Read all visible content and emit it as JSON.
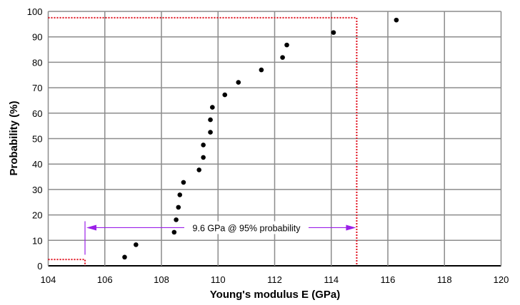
{
  "chart_data": {
    "type": "scatter",
    "title": "",
    "xlabel": "Young's modulus E (GPa)",
    "ylabel": "Probability (%)",
    "xlim": [
      104,
      120
    ],
    "ylim": [
      0,
      100
    ],
    "xticks": [
      104,
      106,
      108,
      110,
      112,
      114,
      116,
      118,
      120
    ],
    "yticks": [
      0,
      10,
      20,
      30,
      40,
      50,
      60,
      70,
      80,
      90,
      100
    ],
    "grid": true,
    "legend": "none",
    "points": [
      {
        "x": 106.7,
        "y": 3.4
      },
      {
        "x": 107.1,
        "y": 8.3
      },
      {
        "x": 108.45,
        "y": 13.2
      },
      {
        "x": 108.52,
        "y": 18.1
      },
      {
        "x": 108.6,
        "y": 23.0
      },
      {
        "x": 108.65,
        "y": 27.9
      },
      {
        "x": 108.78,
        "y": 32.8
      },
      {
        "x": 109.33,
        "y": 37.7
      },
      {
        "x": 109.48,
        "y": 42.6
      },
      {
        "x": 109.48,
        "y": 47.5
      },
      {
        "x": 109.73,
        "y": 52.5
      },
      {
        "x": 109.73,
        "y": 57.4
      },
      {
        "x": 109.8,
        "y": 62.3
      },
      {
        "x": 110.24,
        "y": 67.2
      },
      {
        "x": 110.72,
        "y": 72.1
      },
      {
        "x": 111.53,
        "y": 77.0
      },
      {
        "x": 112.28,
        "y": 81.9
      },
      {
        "x": 112.43,
        "y": 86.8
      },
      {
        "x": 114.08,
        "y": 91.7
      },
      {
        "x": 116.3,
        "y": 96.6
      }
    ],
    "bounds": {
      "lower_x": 105.3,
      "upper_x": 114.9,
      "lower_y": 2.5,
      "upper_y": 97.5
    },
    "annotation": {
      "text": "9.6 GPa @ 95% probability",
      "y": 15,
      "x_from": 105.3,
      "x_to": 114.9
    },
    "colors": {
      "points": "#000000",
      "bounds": "#e0101e",
      "annotation_arrow": "#9b1fe8",
      "grid": "#8c8c8c"
    }
  }
}
